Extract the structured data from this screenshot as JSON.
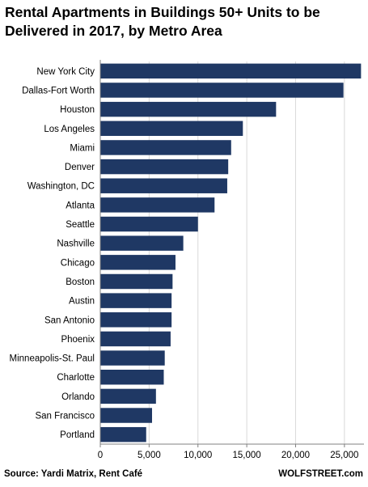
{
  "title_lines": [
    "Rental Apartments in Buildings 50+ Units to be",
    "Delivered in 2017, by Metro Area"
  ],
  "source": "Source: Yardi Matrix, Rent Café",
  "site": "WOLFSTREET.com",
  "colors": {
    "bar": "#1f3864",
    "grid": "#d9d9d9",
    "axis": "#808080"
  },
  "chart_data": {
    "type": "bar",
    "orientation": "horizontal",
    "title": "Rental Apartments in Buildings 50+ Units to be Delivered in 2017, by Metro Area",
    "categories": [
      "New York City",
      "Dallas-Fort Worth",
      "Houston",
      "Los Angeles",
      "Miami",
      "Denver",
      "Washington, DC",
      "Atlanta",
      "Seattle",
      "Nashville",
      "Chicago",
      "Boston",
      "Austin",
      "San Antonio",
      "Phoenix",
      "Minneapolis-St. Paul",
      "Charlotte",
      "Orlando",
      "San Francisco",
      "Portland"
    ],
    "values": [
      26700,
      24900,
      18000,
      14600,
      13400,
      13100,
      13000,
      11700,
      10000,
      8500,
      7700,
      7400,
      7300,
      7300,
      7200,
      6600,
      6500,
      5700,
      5300,
      4700
    ],
    "xlim": [
      0,
      27000
    ],
    "xticks": [
      0,
      5000,
      10000,
      15000,
      20000,
      25000
    ],
    "xtick_labels": [
      "0",
      "5,000",
      "10,000",
      "15,000",
      "20,000",
      "25,000"
    ],
    "xlabel": "",
    "ylabel": "",
    "grid": "vertical"
  }
}
